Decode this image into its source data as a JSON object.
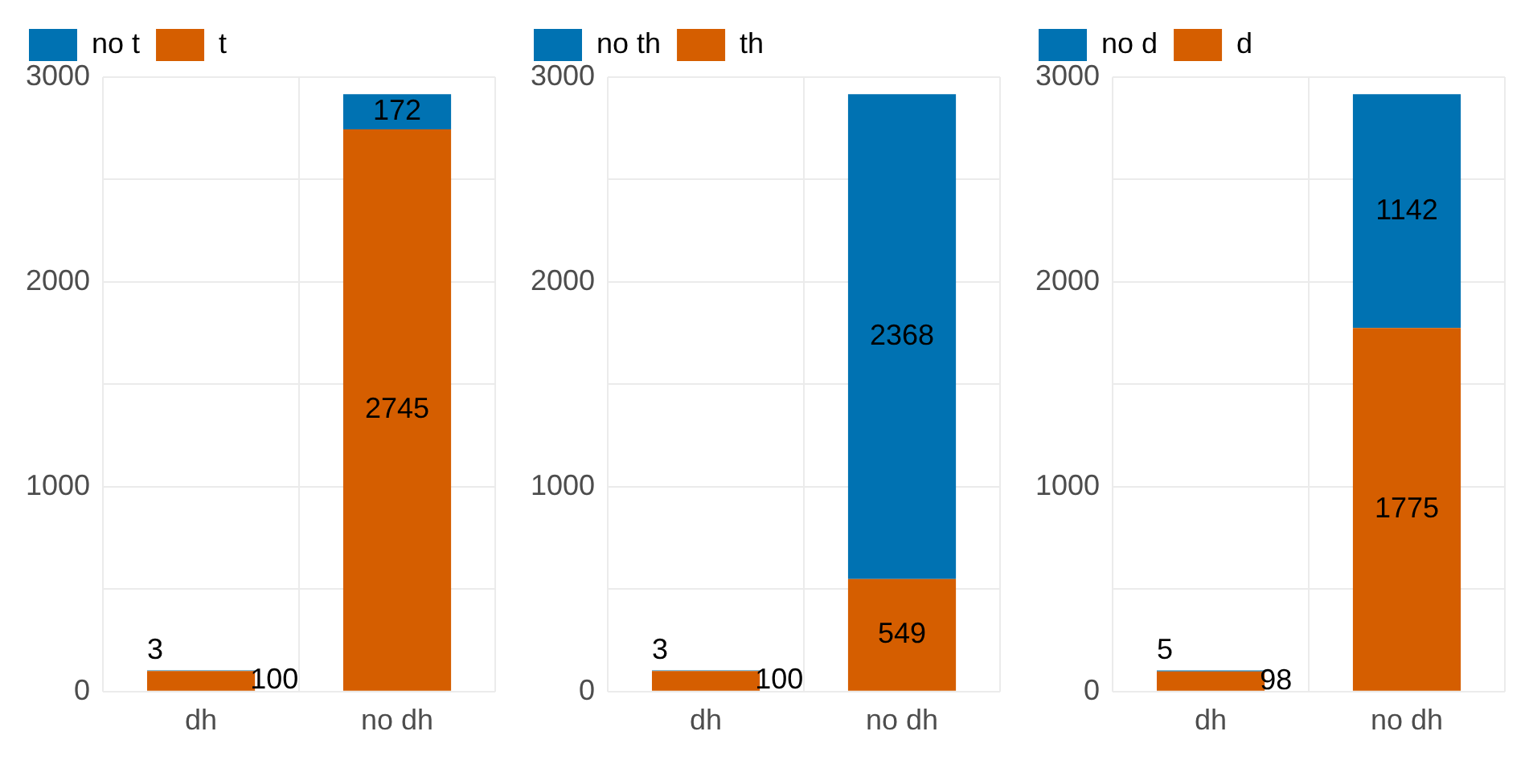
{
  "chart_data": [
    {
      "type": "bar",
      "stacked": true,
      "categories": [
        "dh",
        "no dh"
      ],
      "series": [
        {
          "name": "t",
          "color": "#d55e00",
          "values": [
            100,
            2745
          ]
        },
        {
          "name": "no t",
          "color": "#0072b2",
          "values": [
            3,
            172
          ]
        }
      ],
      "ylim": [
        0,
        3000
      ],
      "yticks": [
        0,
        {
          "value": 500,
          "label": null
        },
        1000,
        {
          "value": 1500,
          "label": null
        },
        2000,
        {
          "value": 2500,
          "label": null
        },
        3000
      ],
      "grid": true,
      "legend": "top left",
      "data_labels": true
    },
    {
      "type": "bar",
      "stacked": true,
      "categories": [
        "dh",
        "no dh"
      ],
      "series": [
        {
          "name": "th",
          "color": "#d55e00",
          "values": [
            100,
            549
          ]
        },
        {
          "name": "no th",
          "color": "#0072b2",
          "values": [
            3,
            2368
          ]
        }
      ],
      "ylim": [
        0,
        3000
      ],
      "yticks": [
        0,
        {
          "value": 500,
          "label": null
        },
        1000,
        {
          "value": 1500,
          "label": null
        },
        2000,
        {
          "value": 2500,
          "label": null
        },
        3000
      ],
      "grid": true,
      "legend": "top left",
      "data_labels": true
    },
    {
      "type": "bar",
      "stacked": true,
      "categories": [
        "dh",
        "no dh"
      ],
      "series": [
        {
          "name": "d",
          "color": "#d55e00",
          "values": [
            98,
            1775
          ]
        },
        {
          "name": "no d",
          "color": "#0072b2",
          "values": [
            5,
            1142
          ]
        }
      ],
      "ylim": [
        0,
        3000
      ],
      "yticks": [
        0,
        {
          "value": 500,
          "label": null
        },
        1000,
        {
          "value": 1500,
          "label": null
        },
        2000,
        {
          "value": 2500,
          "label": null
        },
        3000
      ],
      "grid": true,
      "legend": "top left",
      "data_labels": true
    }
  ]
}
